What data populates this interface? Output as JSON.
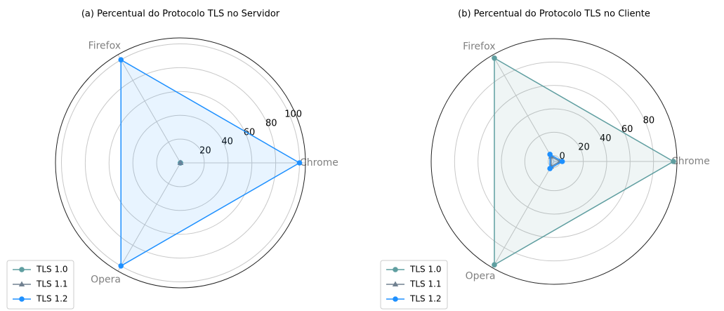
{
  "chart_data": [
    {
      "type": "radar",
      "title": "(a) Percentual do Protocolo TLS no Servidor",
      "categories": [
        "Chrome",
        "Firefox",
        "Opera"
      ],
      "series": [
        {
          "name": "TLS 1.0",
          "color": "#5f9ea0",
          "marker": "circle",
          "values": [
            0,
            0,
            0
          ]
        },
        {
          "name": "TLS 1.1",
          "color": "#708090",
          "marker": "triangle",
          "values": [
            0,
            0,
            0
          ]
        },
        {
          "name": "TLS 1.2",
          "color": "#1e90ff",
          "marker": "circle",
          "values": [
            100,
            100,
            100
          ]
        }
      ],
      "ylim": [
        0,
        105
      ],
      "yticks": [
        20,
        40,
        60,
        80,
        100
      ],
      "grid": true,
      "legend": "lower left"
    },
    {
      "type": "radar",
      "title": "(b) Percentual do Protocolo TLS no Cliente",
      "categories": [
        "Chrome",
        "Firefox",
        "Opera"
      ],
      "series": [
        {
          "name": "TLS 1.0",
          "color": "#5f9ea0",
          "marker": "circle",
          "values": [
            97,
            97,
            97
          ]
        },
        {
          "name": "TLS 1.1",
          "color": "#708090",
          "marker": "triangle",
          "values": [
            0,
            0,
            0
          ]
        },
        {
          "name": "TLS 1.2",
          "color": "#1e90ff",
          "marker": "circle",
          "values": [
            2,
            2,
            2
          ]
        }
      ],
      "ylim": [
        -5,
        100
      ],
      "yticks": [
        0,
        20,
        40,
        60,
        80
      ],
      "grid": true,
      "legend": "lower left"
    }
  ]
}
